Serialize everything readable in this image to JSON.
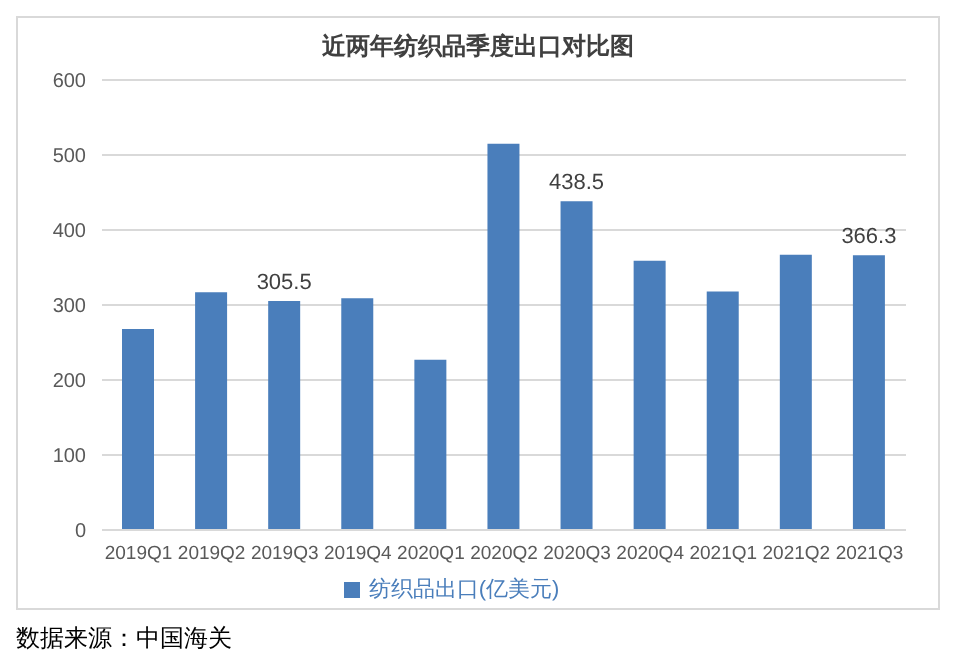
{
  "chart_data": {
    "type": "bar",
    "title": "近两年纺织品季度出口对比图",
    "categories": [
      "2019Q1",
      "2019Q2",
      "2019Q3",
      "2019Q4",
      "2020Q1",
      "2020Q2",
      "2020Q3",
      "2020Q4",
      "2021Q1",
      "2021Q2",
      "2021Q3"
    ],
    "series": [
      {
        "name": "纺织品出口(亿美元)",
        "color": "#4a7ebb",
        "values": [
          268,
          317,
          305.5,
          309,
          227,
          515,
          438.5,
          359,
          318,
          367,
          366.3
        ],
        "value_labels": [
          null,
          null,
          "305.5",
          null,
          null,
          null,
          "438.5",
          null,
          null,
          null,
          "366.3"
        ]
      }
    ],
    "ylim": [
      0,
      600
    ],
    "yticks": [
      0,
      100,
      200,
      300,
      400,
      500,
      600
    ],
    "grid": "y",
    "legend": "bottom",
    "annotations": [
      "数据来源：中国海关"
    ]
  }
}
